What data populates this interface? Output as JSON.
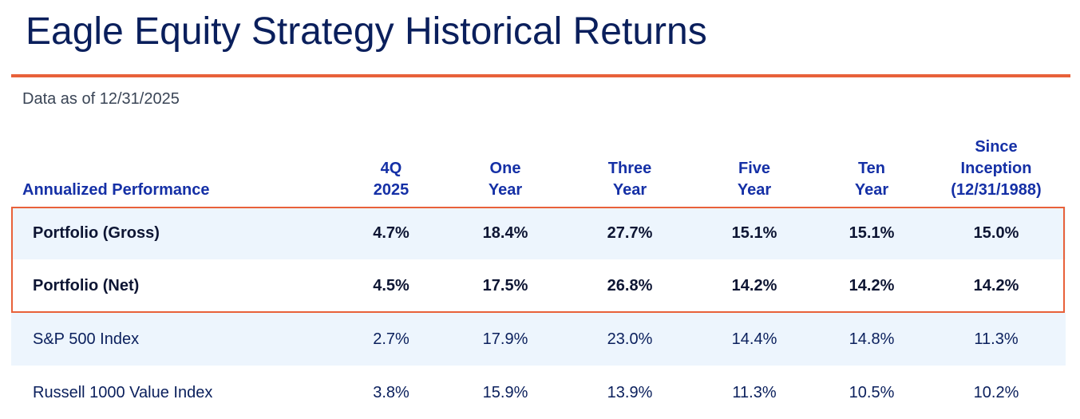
{
  "title": "Eagle Equity Strategy Historical Returns",
  "as_of": "Data as of 12/31/2025",
  "colors": {
    "title": "#0a1f5c",
    "accent_rule": "#e8613a",
    "header_text": "#1530a6",
    "row_shade": "#edf5fd"
  },
  "table": {
    "row_header_label": "Annualized Performance",
    "columns": [
      [
        "4Q",
        "2025"
      ],
      [
        "One",
        "Year"
      ],
      [
        "Three",
        "Year"
      ],
      [
        "Five",
        "Year"
      ],
      [
        "Ten",
        "Year"
      ],
      [
        "Since",
        "Inception",
        "(12/31/1988)"
      ]
    ],
    "rows": [
      {
        "label": "Portfolio (Gross)",
        "values": [
          "4.7%",
          "18.4%",
          "27.7%",
          "15.1%",
          "15.1%",
          "15.0%"
        ],
        "bold": true,
        "highlighted": true
      },
      {
        "label": "Portfolio (Net)",
        "values": [
          "4.5%",
          "17.5%",
          "26.8%",
          "14.2%",
          "14.2%",
          "14.2%"
        ],
        "bold": true,
        "highlighted": true
      },
      {
        "label": "S&P 500 Index",
        "values": [
          "2.7%",
          "17.9%",
          "23.0%",
          "14.4%",
          "14.8%",
          "11.3%"
        ],
        "bold": false,
        "highlighted": false
      },
      {
        "label": "Russell 1000 Value Index",
        "values": [
          "3.8%",
          "15.9%",
          "13.9%",
          "11.3%",
          "10.5%",
          "10.2%"
        ],
        "bold": false,
        "highlighted": false
      }
    ]
  }
}
